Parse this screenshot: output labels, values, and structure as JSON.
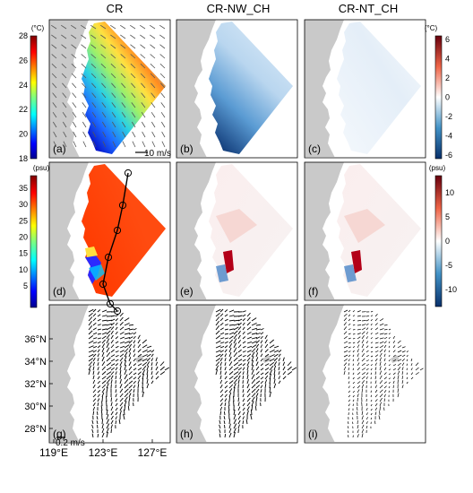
{
  "columns": [
    "CR",
    "CR-NW_CH",
    "CR-NT_CH"
  ],
  "panel_labels": [
    "(a)",
    "(b)",
    "(c)",
    "(d)",
    "(e)",
    "(f)",
    "(g)",
    "(h)",
    "(i)"
  ],
  "colors": {
    "land": "#c9c9c9",
    "sea_bg": "#ffffff",
    "frame": "#000000",
    "vector": "#000000"
  },
  "chart_data": [
    {
      "type": "heatmap",
      "row": "temperature",
      "colorbar_left": {
        "unit": "(°C)",
        "ticks": [
          "28",
          "26",
          "24",
          "22",
          "20",
          "18"
        ],
        "range": [
          18,
          28
        ],
        "colormap": "jet"
      },
      "colorbar_right": {
        "unit": "(°C)",
        "ticks": [
          "6",
          "4",
          "2",
          "0",
          "-2",
          "-4",
          "-6"
        ],
        "range": [
          -6,
          6
        ],
        "colormap": "blue-white-red"
      },
      "wind_scale_label": "10 m/s"
    },
    {
      "type": "heatmap",
      "row": "salinity",
      "colorbar_left": {
        "unit": "(psu)",
        "ticks": [
          "35",
          "30",
          "25",
          "20",
          "15",
          "10",
          "5"
        ],
        "range": [
          3,
          36
        ],
        "colormap": "jet"
      },
      "colorbar_right": {
        "unit": "(psu)",
        "ticks": [
          "10",
          "5",
          "0",
          "-5",
          "-10"
        ],
        "range": [
          -12,
          12
        ],
        "colormap": "blue-white-red"
      }
    },
    {
      "type": "scatter",
      "row": "currents",
      "current_scale_label": "0.2 m/s",
      "y_ticks": [
        "36°N",
        "34°N",
        "32°N",
        "30°N",
        "28°N"
      ],
      "x_ticks": [
        "119°E",
        "123°E",
        "127°E"
      ]
    }
  ]
}
